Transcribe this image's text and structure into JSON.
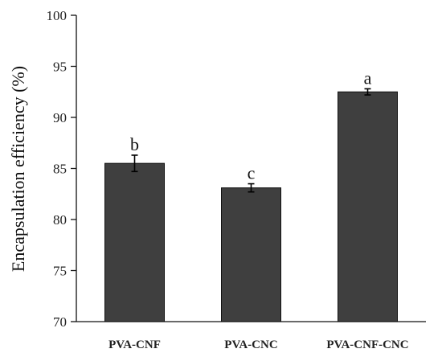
{
  "chart_data": {
    "type": "bar",
    "title": "",
    "xlabel": "",
    "ylabel": "Encapsulation efficiency (%)",
    "categories": [
      "PVA-CNF",
      "PVA-CNC",
      "PVA-CNF-CNC"
    ],
    "values": [
      85.5,
      83.1,
      92.5
    ],
    "errors": [
      0.8,
      0.4,
      0.3
    ],
    "significance_letters": [
      "b",
      "c",
      "a"
    ],
    "ylim": [
      70,
      100
    ],
    "yticks": [
      70,
      75,
      80,
      85,
      90,
      95,
      100
    ],
    "bar_color": "#3f3f3f",
    "grid": false,
    "legend": "none"
  }
}
